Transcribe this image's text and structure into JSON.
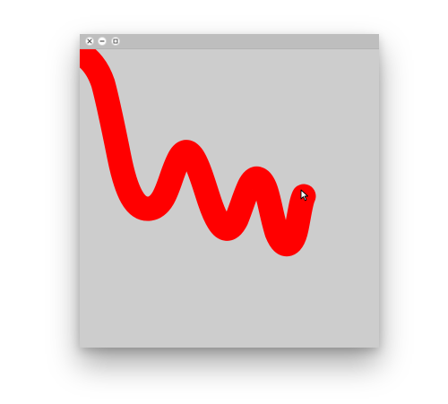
{
  "window": {
    "controls": [
      {
        "name": "close-button",
        "icon": "close-icon"
      },
      {
        "name": "minimize-button",
        "icon": "minimize-icon"
      },
      {
        "name": "maximize-button",
        "icon": "maximize-icon"
      }
    ]
  },
  "canvas": {
    "background": "#cdcdcd",
    "stroke_color": "#ff0000",
    "cursor_icon": "arrow-cursor-icon"
  }
}
